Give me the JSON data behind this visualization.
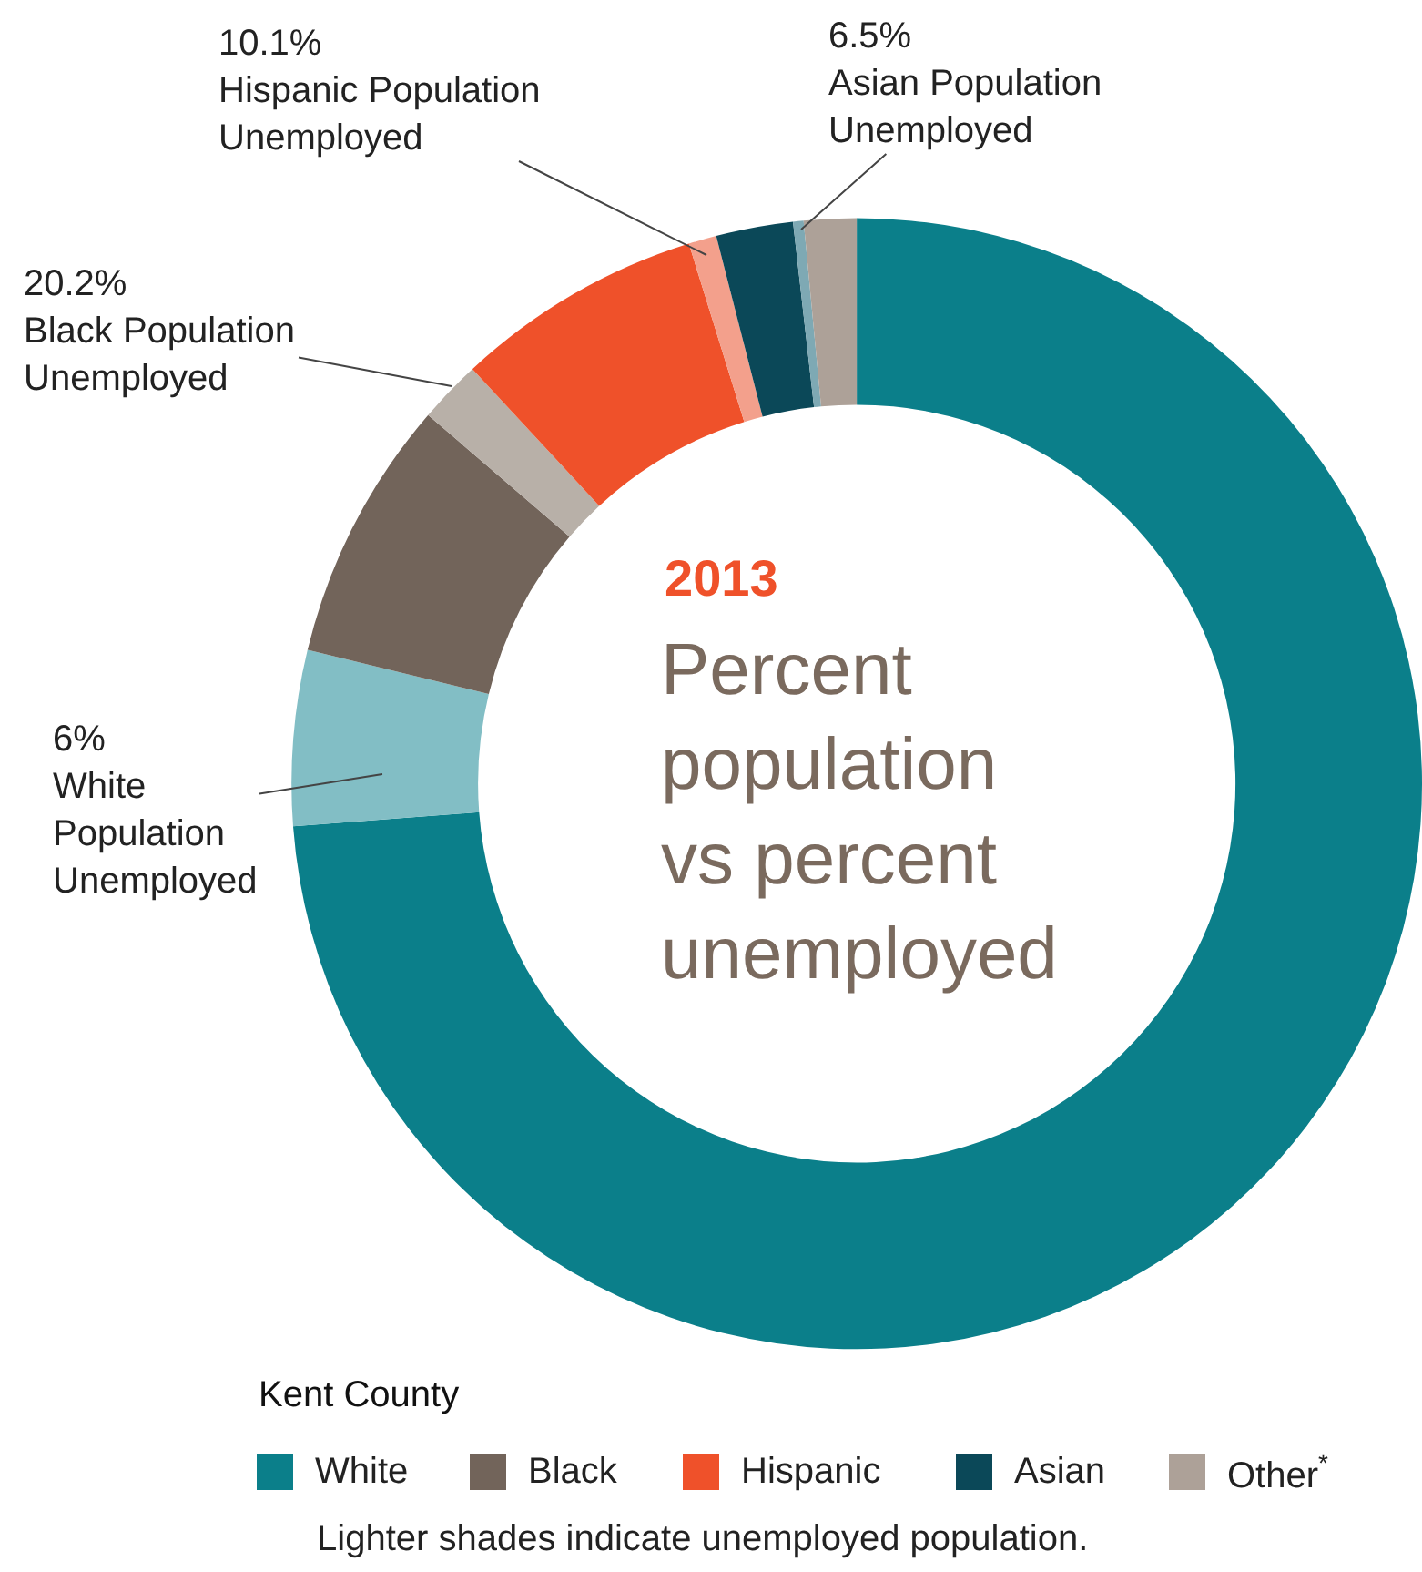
{
  "chart_data": {
    "type": "donut",
    "title": "2013",
    "subtitle": "Percent population vs percent unemployed",
    "categories": [
      "White",
      null,
      "Black",
      null,
      "Hispanic",
      null,
      "Asian",
      null,
      "Other$^{*}$"
    ],
    "values": [
      73.8,
      5.0,
      7.5,
      1.8,
      7.1,
      0.8,
      2.2,
      0.3,
      1.5
    ],
    "colors": [
      "#0b7f8a",
      "#82bec5",
      "#72645a",
      "#b8b0a8",
      "#ef512a",
      "#f3a08c",
      "#0b4858",
      "#7ea9b4",
      "#ada198"
    ],
    "legend": "bottom",
    "legend_title": "Kent County",
    "annotations": [
      "10.1%\nHispanic Population\nUnemployed",
      "6.5%\nAsian Population\nUnemployed",
      "20.2%\nBlack Population\nUnemployed",
      "6%\nWhite\nPopulation\nUnemployed",
      "Lighter shades indicate unemployed population."
    ]
  }
}
